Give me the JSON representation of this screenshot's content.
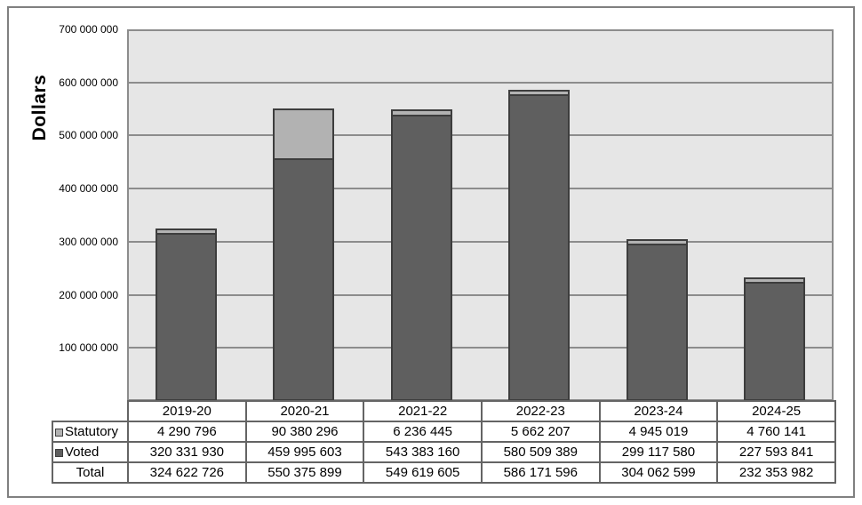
{
  "chart_data": {
    "type": "bar",
    "stacked": true,
    "title": "",
    "xlabel": "",
    "ylabel": "Dollars",
    "ylim": [
      0,
      700000000
    ],
    "y_tick_step": 100000000,
    "y_tick_labels": [
      "700 000 000",
      "600 000 000",
      "500 000 000",
      "400 000 000",
      "300 000 000",
      "200 000 000",
      "100 000 000"
    ],
    "grid": true,
    "legend_position": "table-rows-left",
    "categories": [
      "2019-20",
      "2020-21",
      "2021-22",
      "2022-23",
      "2023-24",
      "2024-25"
    ],
    "series": [
      {
        "name": "Statutory",
        "values": [
          4290796,
          90380296,
          6236445,
          5662207,
          4945019,
          4760141
        ]
      },
      {
        "name": "Voted",
        "values": [
          320331930,
          459995603,
          543383160,
          580509389,
          299117580,
          227593841
        ]
      }
    ],
    "total_row": {
      "label": "Total",
      "values": [
        324622726,
        550375899,
        549619605,
        586171596,
        304062599,
        232353982
      ]
    }
  },
  "colors": {
    "statutory_fill": "#b2b2b2",
    "voted_fill": "#5f5f5f",
    "bar_border": "#3d3d3d",
    "plot_background": "#e6e6e6",
    "gridline": "#8c8c8c",
    "plot_border": "#8c8c8c",
    "table_border": "#646464",
    "figure_border": "#808080",
    "page_background": "#ffffff",
    "text": "#000000"
  }
}
